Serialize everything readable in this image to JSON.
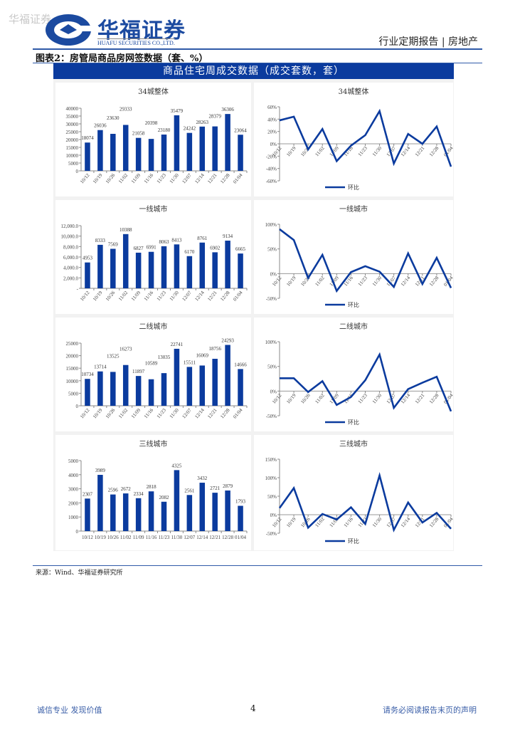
{
  "header": {
    "watermark": "华福证券",
    "logo_cn": "华福证券",
    "logo_en": "HUAFU SECURITIES CO.,LTD.",
    "report_type": "行业定期报告 | 房地产"
  },
  "figure": {
    "title": "图表2：房管局商品房网签数据（套、%）",
    "banner": "商品住宅周成交数据（成交套数，套）",
    "source": "来源：Wind、华福证券研究所"
  },
  "footer": {
    "left": "诚信专业  发现价值",
    "page": "4",
    "right": "请务必阅读报告末页的声明"
  },
  "colors": {
    "bar": "#0b3b9e",
    "line": "#0b3b9e",
    "banner": "#0b3b9e"
  },
  "chart_data": [
    {
      "type": "bar",
      "title": "34城整体",
      "categories": [
        "10/12",
        "10/19",
        "10/26",
        "11/02",
        "11/09",
        "11/16",
        "11/23",
        "11/30",
        "12/07",
        "12/14",
        "12/21",
        "12/28",
        "01/04"
      ],
      "values": [
        18074,
        26036,
        23630,
        29333,
        21058,
        20398,
        23180,
        35479,
        24242,
        28263,
        28379,
        36306,
        23064
      ],
      "ylim": [
        0,
        40000
      ],
      "yticks": [
        "0",
        "5000",
        "10000",
        "15000",
        "20000",
        "25000",
        "30000",
        "35000",
        "40000"
      ],
      "rotate_x": true
    },
    {
      "type": "line",
      "title": "34城整体",
      "categories": [
        "10/12",
        "10/19",
        "10/26",
        "11/02",
        "11/09",
        "11/16",
        "11/23",
        "11/30",
        "12/07",
        "12/14",
        "12/21",
        "12/28",
        "01/04"
      ],
      "values": [
        38,
        44,
        -9,
        24,
        -28,
        -3,
        14,
        53,
        -32,
        16,
        0,
        28,
        -37
      ],
      "ylim": [
        -60,
        60
      ],
      "yticks": [
        "-60%",
        "-40%",
        "-20%",
        "0%",
        "20%",
        "40%",
        "60%"
      ],
      "legend": "环比"
    },
    {
      "type": "bar",
      "title": "一线城市",
      "categories": [
        "10/12",
        "10/19",
        "10/26",
        "11/02",
        "11/09",
        "11/16",
        "11/23",
        "11/30",
        "12/07",
        "12/14",
        "12/21",
        "12/28",
        "01/04"
      ],
      "values": [
        4953,
        8333,
        7569,
        10388,
        6827,
        6991,
        8063,
        8413,
        6170,
        8761,
        6902,
        9134,
        6665
      ],
      "ylim": [
        0,
        12000
      ],
      "yticks": [
        "-",
        "2,000.0",
        "4,000.0",
        "6,000.0",
        "8,000.0",
        "10,000.0",
        "12,000.0"
      ],
      "rotate_x": true
    },
    {
      "type": "line",
      "title": "一线城市",
      "categories": [
        "10/12",
        "10/19",
        "10/26",
        "11/02",
        "11/09",
        "11/16",
        "11/23",
        "11/30",
        "12/07",
        "12/14",
        "12/21",
        "12/28",
        "01/04"
      ],
      "values": [
        90,
        68,
        -9,
        38,
        -35,
        3,
        15,
        4,
        -27,
        41,
        -21,
        32,
        -29
      ],
      "ylim": [
        -50,
        100
      ],
      "yticks": [
        "-50%",
        "0%",
        "50%",
        "100%"
      ],
      "legend": "环比"
    },
    {
      "type": "bar",
      "title": "二线城市",
      "categories": [
        "10/12",
        "10/19",
        "10/26",
        "11/02",
        "11/09",
        "11/16",
        "11/23",
        "11/30",
        "12/07",
        "12/14",
        "12/21",
        "12/28",
        "01/04"
      ],
      "values": [
        10734,
        13714,
        13525,
        16273,
        11897,
        10589,
        13035,
        22741,
        15511,
        16069,
        18756,
        24293,
        14666
      ],
      "ylim": [
        0,
        25000
      ],
      "yticks": [
        "0",
        "5000",
        "10000",
        "15000",
        "20000",
        "25000"
      ],
      "rotate_x": true
    },
    {
      "type": "line",
      "title": "二线城市",
      "categories": [
        "10/12",
        "10/19",
        "10/26",
        "11/02",
        "11/09",
        "11/16",
        "11/23",
        "11/30",
        "12/07",
        "12/14",
        "12/21",
        "12/28",
        "01/04"
      ],
      "values": [
        26,
        26,
        -2,
        20,
        -28,
        -12,
        22,
        74,
        -34,
        4,
        17,
        29,
        -41
      ],
      "ylim": [
        -50,
        100
      ],
      "yticks": [
        "-50%",
        "0%",
        "50%",
        "100%"
      ],
      "legend": "环比"
    },
    {
      "type": "bar",
      "title": "三线城市",
      "categories": [
        "10/12",
        "10/19",
        "10/26",
        "11/02",
        "11/09",
        "11/16",
        "11/23",
        "11/30",
        "12/07",
        "12/14",
        "12/21",
        "12/28",
        "01/04"
      ],
      "values": [
        2307,
        3989,
        2596,
        2672,
        2334,
        2818,
        2082,
        4325,
        2561,
        3432,
        2721,
        2879,
        1793
      ],
      "ylim": [
        0,
        5000
      ],
      "yticks": [
        "0",
        "1000",
        "2000",
        "3000",
        "4000",
        "5000"
      ],
      "rotate_x": false
    },
    {
      "type": "line",
      "title": "三线城市",
      "categories": [
        "10/12",
        "10/19",
        "10/26",
        "11/02",
        "11/09",
        "11/16",
        "11/23",
        "11/30",
        "12/07",
        "12/14",
        "12/21",
        "12/28",
        "01/04"
      ],
      "values": [
        18,
        72,
        -35,
        2,
        -13,
        20,
        -25,
        106,
        -41,
        33,
        -21,
        5,
        -38
      ],
      "ylim": [
        -50,
        150
      ],
      "yticks": [
        "-50%",
        "0%",
        "50%",
        "100%",
        "150%"
      ],
      "legend": "环比"
    }
  ]
}
